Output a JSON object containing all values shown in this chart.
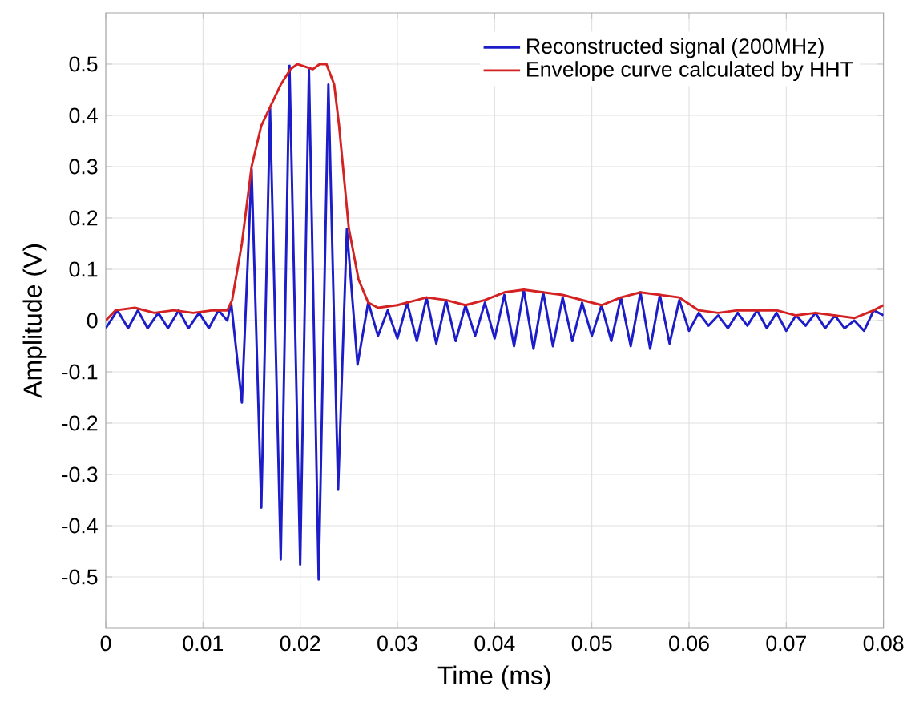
{
  "chart_data": {
    "type": "line",
    "xlabel": "Time (ms)",
    "ylabel": "Amplitude (V)",
    "xlim": [
      0,
      0.08
    ],
    "ylim": [
      -0.6,
      0.6
    ],
    "xticks": [
      0,
      0.01,
      0.02,
      0.03,
      0.04,
      0.05,
      0.06,
      0.07,
      0.08
    ],
    "yticks": [
      -0.5,
      -0.4,
      -0.3,
      -0.2,
      -0.1,
      0,
      0.1,
      0.2,
      0.3,
      0.4,
      0.5
    ],
    "grid": true,
    "legend": "top right",
    "marker": "none",
    "line_style": "solid",
    "series": [
      {
        "name": "Reconstructed signal (200MHz)",
        "color": "#1c1cc8",
        "x": [
          0,
          0.0012,
          0.0023,
          0.0033,
          0.0043,
          0.0054,
          0.0064,
          0.0075,
          0.0085,
          0.0096,
          0.0106,
          0.0116,
          0.0125,
          0.0129,
          0.014,
          0.015,
          0.016,
          0.0169,
          0.018,
          0.0189,
          0.02,
          0.0209,
          0.0219,
          0.0229,
          0.0239,
          0.0248,
          0.0259,
          0.027,
          0.028,
          0.029,
          0.03,
          0.031,
          0.032,
          0.033,
          0.034,
          0.035,
          0.036,
          0.037,
          0.038,
          0.039,
          0.04,
          0.041,
          0.042,
          0.043,
          0.044,
          0.045,
          0.046,
          0.047,
          0.048,
          0.049,
          0.05,
          0.051,
          0.052,
          0.053,
          0.054,
          0.055,
          0.056,
          0.057,
          0.058,
          0.059,
          0.06,
          0.061,
          0.062,
          0.063,
          0.064,
          0.065,
          0.066,
          0.067,
          0.068,
          0.069,
          0.07,
          0.071,
          0.072,
          0.073,
          0.074,
          0.075,
          0.076,
          0.077,
          0.078,
          0.079,
          0.08
        ],
        "values": [
          -0.015,
          0.02,
          -0.015,
          0.02,
          -0.015,
          0.015,
          -0.015,
          0.02,
          -0.015,
          0.015,
          -0.015,
          0.02,
          0,
          0.034,
          -0.16,
          0.295,
          -0.365,
          0.414,
          -0.466,
          0.497,
          -0.476,
          0.489,
          -0.505,
          0.46,
          -0.33,
          0.178,
          -0.086,
          0.036,
          -0.03,
          0.02,
          -0.035,
          0.035,
          -0.04,
          0.045,
          -0.045,
          0.04,
          -0.04,
          0.03,
          -0.03,
          0.035,
          -0.035,
          0.05,
          -0.05,
          0.06,
          -0.055,
          0.055,
          -0.05,
          0.045,
          -0.04,
          0.035,
          -0.03,
          0.03,
          -0.04,
          0.045,
          -0.05,
          0.055,
          -0.055,
          0.05,
          -0.045,
          0.04,
          -0.02,
          0.015,
          -0.01,
          0.01,
          -0.015,
          0.015,
          -0.01,
          0.02,
          -0.015,
          0.015,
          -0.02,
          0.01,
          -0.01,
          0.015,
          -0.015,
          0.01,
          -0.015,
          0,
          -0.02,
          0.02,
          0.01
        ]
      },
      {
        "name": "Envelope curve calculated by HHT",
        "color": "#d42222",
        "x": [
          0,
          0.001,
          0.003,
          0.005,
          0.007,
          0.009,
          0.011,
          0.0125,
          0.013,
          0.014,
          0.015,
          0.016,
          0.017,
          0.018,
          0.019,
          0.0197,
          0.0205,
          0.0213,
          0.022,
          0.0227,
          0.0235,
          0.024,
          0.025,
          0.026,
          0.027,
          0.028,
          0.03,
          0.032,
          0.033,
          0.035,
          0.037,
          0.039,
          0.041,
          0.043,
          0.045,
          0.047,
          0.049,
          0.051,
          0.053,
          0.055,
          0.057,
          0.059,
          0.061,
          0.063,
          0.065,
          0.067,
          0.069,
          0.071,
          0.073,
          0.075,
          0.077,
          0.079,
          0.08
        ],
        "values": [
          0,
          0.02,
          0.025,
          0.015,
          0.02,
          0.015,
          0.02,
          0.02,
          0.04,
          0.15,
          0.3,
          0.38,
          0.42,
          0.46,
          0.49,
          0.5,
          0.495,
          0.49,
          0.5,
          0.5,
          0.46,
          0.38,
          0.18,
          0.08,
          0.035,
          0.025,
          0.03,
          0.04,
          0.045,
          0.04,
          0.03,
          0.04,
          0.055,
          0.06,
          0.055,
          0.05,
          0.04,
          0.03,
          0.045,
          0.055,
          0.05,
          0.045,
          0.02,
          0.015,
          0.02,
          0.02,
          0.02,
          0.01,
          0.015,
          0.01,
          0.005,
          0.02,
          0.03
        ]
      }
    ]
  }
}
